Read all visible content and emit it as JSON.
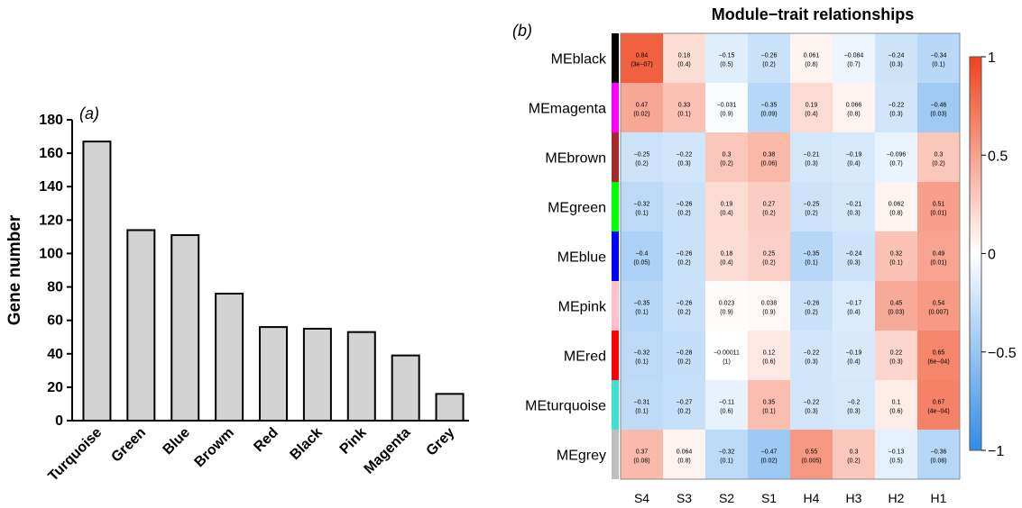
{
  "chart_data": [
    {
      "type": "bar",
      "panel_label": "(a)",
      "ylabel": "Gene number",
      "xlabel": "",
      "ylim": [
        0,
        180
      ],
      "yticks": [
        0,
        20,
        40,
        60,
        80,
        100,
        120,
        140,
        160,
        180
      ],
      "categories": [
        "Turquoise",
        "Green",
        "Blue",
        "Browm",
        "Red",
        "Black",
        "Pink",
        "Magenta",
        "Grey"
      ],
      "values": [
        167,
        114,
        111,
        76,
        56,
        55,
        53,
        39,
        16
      ],
      "bar_color": "#d3d3d3",
      "grid": false
    },
    {
      "type": "heatmap",
      "panel_label": "(b)",
      "title": "Module−trait relationships",
      "rows": [
        "MEblack",
        "MEmagenta",
        "MEbrown",
        "MEgreen",
        "MEblue",
        "MEpink",
        "MEred",
        "MEturquoise",
        "MEgrey"
      ],
      "row_colors": [
        "#000000",
        "#ff00ff",
        "#a52a2a",
        "#00ff00",
        "#0000ff",
        "#ffc0cb",
        "#ff0000",
        "#40e0d0",
        "#bebebe"
      ],
      "columns": [
        "S4",
        "S3",
        "S2",
        "S1",
        "H4",
        "H3",
        "H2",
        "H1"
      ],
      "correlations": [
        [
          0.84,
          0.18,
          -0.15,
          -0.26,
          0.061,
          -0.084,
          -0.24,
          -0.34
        ],
        [
          0.47,
          0.33,
          -0.031,
          -0.35,
          0.19,
          0.066,
          -0.22,
          -0.46
        ],
        [
          -0.25,
          -0.22,
          0.3,
          0.38,
          -0.21,
          -0.19,
          -0.096,
          0.3
        ],
        [
          -0.32,
          -0.26,
          0.19,
          0.27,
          -0.25,
          -0.21,
          0.062,
          0.51
        ],
        [
          -0.4,
          -0.26,
          0.18,
          0.25,
          -0.35,
          -0.24,
          0.32,
          0.49
        ],
        [
          -0.35,
          -0.26,
          0.023,
          0.038,
          -0.26,
          -0.17,
          0.45,
          0.54
        ],
        [
          -0.32,
          -0.28,
          -0.00011,
          0.12,
          -0.22,
          -0.19,
          0.22,
          0.65
        ],
        [
          -0.31,
          -0.27,
          -0.11,
          0.35,
          -0.22,
          -0.2,
          0.1,
          0.67
        ],
        [
          0.37,
          0.064,
          -0.32,
          -0.47,
          0.55,
          0.3,
          -0.13,
          -0.36
        ]
      ],
      "labels_top": [
        [
          "0.84",
          "0.18",
          "−0.15",
          "−0.26",
          "0.061",
          "−0.084",
          "−0.24",
          "−0.34"
        ],
        [
          "0.47",
          "0.33",
          "−0.031",
          "−0.35",
          "0.19",
          "0.066",
          "−0.22",
          "−0.46"
        ],
        [
          "−0.25",
          "−0.22",
          "0.3",
          "0.38",
          "−0.21",
          "−0.19",
          "−0.096",
          "0.3"
        ],
        [
          "−0.32",
          "−0.26",
          "0.19",
          "0.27",
          "−0.25",
          "−0.21",
          "0.062",
          "0.51"
        ],
        [
          "−0.4",
          "−0.26",
          "0.18",
          "0.25",
          "−0.35",
          "−0.24",
          "0.32",
          "0.49"
        ],
        [
          "−0.35",
          "−0.26",
          "0.023",
          "0.038",
          "−0.26",
          "−0.17",
          "0.45",
          "0.54"
        ],
        [
          "−0.32",
          "−0.28",
          "−0.00011",
          "0.12",
          "−0.22",
          "−0.19",
          "0.22",
          "0.65"
        ],
        [
          "−0.31",
          "−0.27",
          "−0.11",
          "0.35",
          "−0.22",
          "−0.2",
          "0.1",
          "0.67"
        ],
        [
          "0.37",
          "0.064",
          "−0.32",
          "−0.47",
          "0.55",
          "0.3",
          "−0.13",
          "−0.36"
        ]
      ],
      "pvalues": [
        [
          "(3e−07)",
          "(0.4)",
          "(0.5)",
          "(0.2)",
          "(0.8)",
          "(0.7)",
          "(0.3)",
          "(0.1)"
        ],
        [
          "(0.02)",
          "(0.1)",
          "(0.9)",
          "(0.09)",
          "(0.4)",
          "(0.8)",
          "(0.3)",
          "(0.03)"
        ],
        [
          "(0.2)",
          "(0.3)",
          "(0.2)",
          "(0.06)",
          "(0.3)",
          "(0.4)",
          "(0.7)",
          "(0.2)"
        ],
        [
          "(0.1)",
          "(0.2)",
          "(0.4)",
          "(0.2)",
          "(0.2)",
          "(0.3)",
          "(0.8)",
          "(0.01)"
        ],
        [
          "(0.05)",
          "(0.2)",
          "(0.4)",
          "(0.2)",
          "(0.1)",
          "(0.3)",
          "(0.1)",
          "(0.01)"
        ],
        [
          "(0.1)",
          "(0.2)",
          "(0.9)",
          "(0.9)",
          "(0.2)",
          "(0.4)",
          "(0.03)",
          "(0.007)"
        ],
        [
          "(0.1)",
          "(0.2)",
          "(1)",
          "(0.6)",
          "(0.3)",
          "(0.4)",
          "(0.3)",
          "(6e−04)"
        ],
        [
          "(0.1)",
          "(0.2)",
          "(0.6)",
          "(0.1)",
          "(0.3)",
          "(0.3)",
          "(0.6)",
          "(4e−04)"
        ],
        [
          "(0.08)",
          "(0.8)",
          "(0.1)",
          "(0.02)",
          "(0.005)",
          "(0.2)",
          "(0.5)",
          "(0.08)"
        ]
      ],
      "colorbar": {
        "range": [
          -1,
          1
        ],
        "ticks": [
          "1",
          "0.5",
          "0",
          "−0.5",
          "−1"
        ],
        "tick_values": [
          1,
          0.5,
          0,
          -0.5,
          -1
        ],
        "colors": {
          "low": "#2f8ce8",
          "mid": "#ffffff",
          "high": "#f0431b"
        }
      }
    }
  ]
}
